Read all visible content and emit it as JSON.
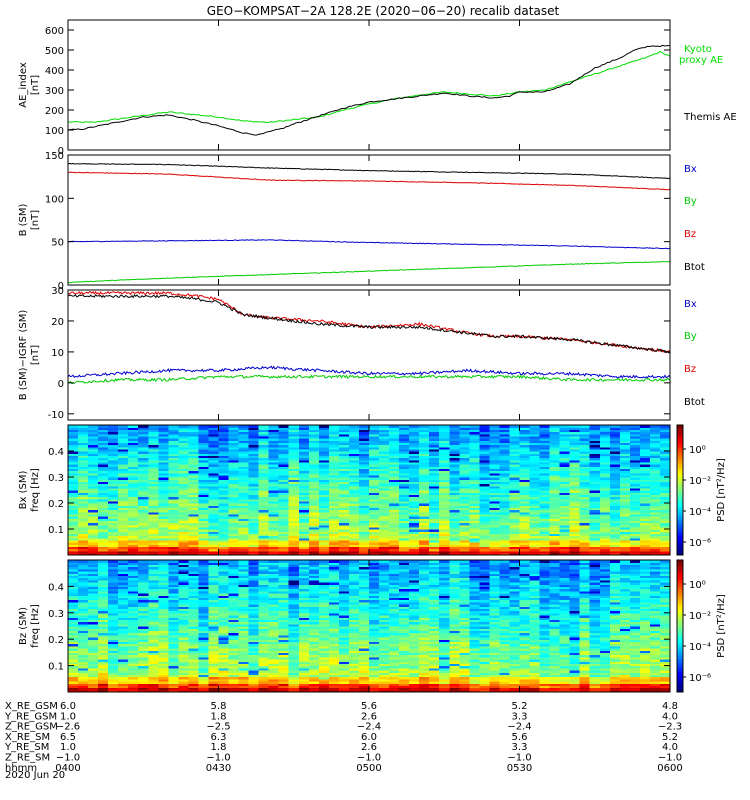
{
  "title": "GEO−KOMPSAT−2A 128.2E (2020−06−20) recalib dataset",
  "x_range": [
    "04:00",
    "06:00"
  ],
  "x_ticks": [
    "0400",
    "0430",
    "0500",
    "0530",
    "0600"
  ],
  "date_label": "2020 Jun 20",
  "chart_data": [
    {
      "type": "line",
      "ylabel": [
        "AE_index",
        "[nT]"
      ],
      "ylim": [
        0,
        650
      ],
      "yticks": [
        0,
        100,
        200,
        300,
        400,
        500,
        600
      ],
      "series": [
        {
          "name": "Kyoto proxy AE",
          "legend": [
            "Kyoto",
            "proxy AE"
          ],
          "color": "#00dd00",
          "x": [
            0,
            5,
            10,
            20,
            30,
            35,
            40,
            50,
            55,
            60,
            65,
            70,
            75,
            80,
            85,
            90,
            95,
            100,
            105,
            110,
            115,
            118,
            120
          ],
          "y": [
            140,
            138,
            155,
            190,
            165,
            145,
            138,
            165,
            200,
            230,
            255,
            275,
            290,
            280,
            270,
            290,
            300,
            340,
            380,
            420,
            460,
            490,
            470
          ]
        },
        {
          "name": "Themis AE",
          "legend": [
            "Themis AE"
          ],
          "color": "#000000",
          "x": [
            0,
            3,
            8,
            15,
            20,
            25,
            30,
            35,
            38,
            40,
            43,
            45,
            50,
            55,
            60,
            65,
            70,
            75,
            80,
            85,
            88,
            90,
            95,
            100,
            105,
            110,
            113,
            116,
            120
          ],
          "y": [
            100,
            105,
            130,
            165,
            175,
            150,
            120,
            85,
            75,
            90,
            110,
            130,
            170,
            210,
            240,
            255,
            270,
            285,
            270,
            260,
            270,
            290,
            290,
            330,
            410,
            460,
            500,
            520,
            520
          ]
        }
      ]
    },
    {
      "type": "line",
      "ylabel": [
        "B (SM)",
        "[nT]"
      ],
      "ylim": [
        0,
        150
      ],
      "yticks": [
        0,
        50,
        100,
        150
      ],
      "legend": [
        {
          "label": "Bx",
          "color": "#0000cc"
        },
        {
          "label": "By",
          "color": "#00cc00"
        },
        {
          "label": "Bz",
          "color": "#dd0000"
        },
        {
          "label": "Btot",
          "color": "#000000"
        }
      ],
      "series": [
        {
          "name": "Btot",
          "color": "#000000",
          "x": [
            0,
            20,
            40,
            60,
            80,
            100,
            120
          ],
          "y": [
            140,
            139,
            135,
            132,
            130,
            128,
            123
          ]
        },
        {
          "name": "Bz",
          "color": "#dd0000",
          "x": [
            0,
            20,
            40,
            60,
            80,
            100,
            120
          ],
          "y": [
            130,
            128,
            121,
            120,
            118,
            115,
            110
          ]
        },
        {
          "name": "Bx",
          "color": "#0000cc",
          "x": [
            0,
            20,
            40,
            60,
            80,
            100,
            120
          ],
          "y": [
            50,
            51,
            52,
            49,
            47,
            45,
            42
          ]
        },
        {
          "name": "By",
          "color": "#00cc00",
          "x": [
            0,
            20,
            40,
            60,
            80,
            100,
            120
          ],
          "y": [
            3,
            8,
            12,
            16,
            20,
            24,
            27
          ]
        }
      ]
    },
    {
      "type": "line",
      "ylabel": [
        "B (SM)−IGRF (SM)",
        "[nT]"
      ],
      "ylim": [
        -12,
        30
      ],
      "yticks": [
        -10,
        0,
        10,
        20,
        30
      ],
      "legend": [
        {
          "label": "Bx",
          "color": "#0000cc"
        },
        {
          "label": "By",
          "color": "#00cc00"
        },
        {
          "label": "Bz",
          "color": "#dd0000"
        },
        {
          "label": "Btot",
          "color": "#000000"
        }
      ],
      "series": [
        {
          "name": "Bz",
          "color": "#dd0000",
          "x": [
            0,
            10,
            20,
            26,
            30,
            35,
            40,
            50,
            60,
            70,
            80,
            85,
            90,
            100,
            110,
            120
          ],
          "y": [
            29,
            29,
            29,
            28,
            27,
            22,
            21,
            20,
            18,
            19,
            16,
            15,
            15,
            14,
            12,
            10
          ]
        },
        {
          "name": "Btot",
          "color": "#000000",
          "x": [
            0,
            10,
            20,
            26,
            30,
            35,
            40,
            50,
            60,
            70,
            80,
            85,
            90,
            100,
            110,
            120
          ],
          "y": [
            28,
            28,
            28,
            27,
            26,
            22,
            21,
            19,
            18,
            18,
            16,
            15,
            15,
            14,
            12,
            10
          ]
        },
        {
          "name": "Bx",
          "color": "#0000cc",
          "x": [
            0,
            10,
            20,
            30,
            40,
            50,
            60,
            70,
            80,
            90,
            100,
            110,
            120
          ],
          "y": [
            2,
            3,
            4,
            4,
            5,
            4,
            3,
            3,
            4,
            3,
            3,
            2,
            2
          ]
        },
        {
          "name": "By",
          "color": "#00cc00",
          "x": [
            0,
            10,
            20,
            30,
            40,
            50,
            60,
            70,
            80,
            90,
            100,
            110,
            120
          ],
          "y": [
            0,
            1,
            1,
            2,
            2,
            2,
            2,
            2,
            2,
            2,
            1,
            1,
            1
          ]
        }
      ]
    },
    {
      "type": "heatmap",
      "ylabel": [
        "Bx (SM)",
        "freq [Hz]"
      ],
      "ylim": [
        0,
        0.5
      ],
      "yticks": [
        0.1,
        0.2,
        0.3,
        0.4
      ],
      "colorbar": {
        "label": "PSD [nT²/Hz]",
        "ticks": [
          "10⁰",
          "10⁻²",
          "10⁻⁴",
          "10⁻⁶"
        ]
      }
    },
    {
      "type": "heatmap",
      "ylabel": [
        "Bz (SM)",
        "freq [Hz]"
      ],
      "ylim": [
        0,
        0.5
      ],
      "yticks": [
        0.1,
        0.2,
        0.3,
        0.4
      ],
      "colorbar": {
        "label": "PSD [nT²/Hz]",
        "ticks": [
          "10⁰",
          "10⁻²",
          "10⁻⁴",
          "10⁻⁶"
        ]
      }
    }
  ],
  "ephemeris": {
    "rows": [
      {
        "label": "X_RE_GSM",
        "values": [
          "6.0",
          "5.8",
          "5.6",
          "5.2",
          "4.8"
        ]
      },
      {
        "label": "Y_RE_GSM",
        "values": [
          "1.0",
          "1.8",
          "2.6",
          "3.3",
          "4.0"
        ]
      },
      {
        "label": "Z_RE_GSM",
        "values": [
          "−2.6",
          "−2.5",
          "−2.4",
          "−2.4",
          "−2.3"
        ]
      },
      {
        "label": "X_RE_SM",
        "values": [
          "6.5",
          "6.3",
          "6.0",
          "5.6",
          "5.2"
        ]
      },
      {
        "label": "Y_RE_SM",
        "values": [
          "1.0",
          "1.8",
          "2.6",
          "3.3",
          "4.0"
        ]
      },
      {
        "label": "Z_RE_SM",
        "values": [
          "−1.0",
          "−1.0",
          "−1.0",
          "−1.0",
          "−1.0"
        ]
      },
      {
        "label": "hhmm",
        "values": [
          "0400",
          "0430",
          "0500",
          "0530",
          "0600"
        ]
      }
    ]
  }
}
